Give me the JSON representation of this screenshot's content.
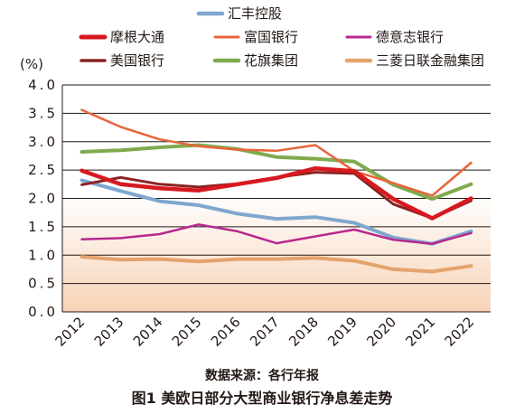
{
  "chart_data": {
    "type": "line",
    "ylabel": "(%)",
    "ylim": [
      0,
      4.0
    ],
    "yticks": [
      "4.0",
      "3.5",
      "3.0",
      "2.5",
      "2.0",
      "1.5",
      "1.0",
      "0.5",
      "0.0"
    ],
    "x": [
      "2012",
      "2013",
      "2014",
      "2015",
      "2016",
      "2017",
      "2018",
      "2019",
      "2020",
      "2021",
      "2022"
    ],
    "grid": true,
    "legend_position": "top",
    "series": [
      {
        "name": "汇丰控股",
        "color": "#7fa7cf",
        "width": 4,
        "values": [
          2.32,
          2.13,
          1.95,
          1.88,
          1.73,
          1.64,
          1.67,
          1.57,
          1.31,
          1.2,
          1.42
        ]
      },
      {
        "name": "摩根大通",
        "color": "#d7191f",
        "width": 4.5,
        "values": [
          2.49,
          2.25,
          2.18,
          2.14,
          2.25,
          2.36,
          2.53,
          2.48,
          1.99,
          1.65,
          2.0
        ]
      },
      {
        "name": "富国银行",
        "color": "#e8643a",
        "width": 2.5,
        "values": [
          3.56,
          3.26,
          3.04,
          2.92,
          2.86,
          2.84,
          2.94,
          2.48,
          2.27,
          2.05,
          2.63
        ]
      },
      {
        "name": "德意志银行",
        "color": "#b7288f",
        "width": 2.5,
        "values": [
          1.28,
          1.3,
          1.37,
          1.54,
          1.42,
          1.21,
          1.33,
          1.45,
          1.27,
          1.2,
          1.39
        ]
      },
      {
        "name": "美国银行",
        "color": "#8b2323",
        "width": 3,
        "values": [
          2.24,
          2.37,
          2.25,
          2.2,
          2.26,
          2.37,
          2.46,
          2.44,
          1.9,
          1.65,
          1.96
        ]
      },
      {
        "name": "花旗集团",
        "color": "#7faa4e",
        "width": 4,
        "values": [
          2.82,
          2.85,
          2.9,
          2.94,
          2.87,
          2.73,
          2.7,
          2.65,
          2.24,
          1.99,
          2.25
        ]
      },
      {
        "name": "三菱日联金融集团",
        "color": "#e5a36c",
        "width": 4,
        "values": [
          0.97,
          0.92,
          0.93,
          0.89,
          0.93,
          0.93,
          0.95,
          0.9,
          0.75,
          0.71,
          0.81
        ]
      }
    ]
  },
  "source_note": "数据来源：各行年报",
  "figure_caption": "图1  美欧日部分大型商业银行净息差走势"
}
